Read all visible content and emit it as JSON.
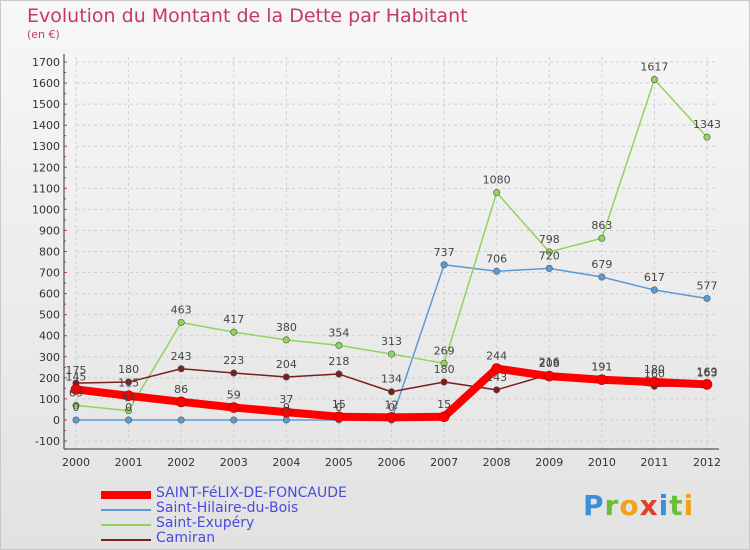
{
  "title": "Evolution du Montant de la Dette par Habitant",
  "subtitle": "(en €)",
  "logo": {
    "text": "Proxiti",
    "letters": [
      {
        "ch": "P",
        "color": "#3a8fd6"
      },
      {
        "ch": "r",
        "color": "#6cbd3a"
      },
      {
        "ch": "o",
        "color": "#f0a21a"
      },
      {
        "ch": "x",
        "color": "#e0402a"
      },
      {
        "ch": "i",
        "color": "#3a8fd6"
      },
      {
        "ch": "t",
        "color": "#6cbd3a"
      },
      {
        "ch": "i",
        "color": "#f0a21a"
      }
    ]
  },
  "chart_data": {
    "type": "line",
    "x": [
      2000,
      2001,
      2002,
      2003,
      2004,
      2005,
      2006,
      2007,
      2008,
      2009,
      2010,
      2011,
      2012
    ],
    "ylim": [
      -100,
      1700
    ],
    "yticks": [
      -100,
      0,
      100,
      200,
      300,
      400,
      500,
      600,
      700,
      800,
      900,
      1000,
      1100,
      1200,
      1300,
      1400,
      1500,
      1600,
      1700
    ],
    "grid": true,
    "legend_position": "bottom-left",
    "series": [
      {
        "name": "SAINT-FéLIX-DE-FONCAUDE",
        "color": "#ff0000",
        "width": 8,
        "values": [
          145,
          115,
          86,
          59,
          37,
          15,
          12,
          15,
          244,
          208,
          191,
          180,
          169
        ],
        "labels": [
          "145",
          "115",
          "86",
          "59",
          "37",
          "15",
          "12",
          "15",
          "244",
          "208",
          "191",
          "180",
          "169"
        ]
      },
      {
        "name": "Saint-Hilaire-du-Bois",
        "color": "#5b9bd5",
        "width": 1.5,
        "values": [
          0,
          0,
          0,
          0,
          0,
          0,
          0,
          737,
          706,
          720,
          679,
          617,
          577
        ],
        "labels": [
          "0",
          "0",
          "",
          "",
          "0",
          "0",
          "0",
          "737",
          "706",
          "720",
          "679",
          "617",
          "577"
        ]
      },
      {
        "name": "Saint-Exupéry",
        "color": "#8fd45c",
        "width": 1.5,
        "values": [
          69,
          44,
          463,
          417,
          380,
          354,
          313,
          269,
          1080,
          798,
          863,
          1617,
          1343
        ],
        "labels": [
          "69",
          "44",
          "463",
          "417",
          "380",
          "354",
          "313",
          "269",
          "1080",
          "798",
          "863",
          "1617",
          "1343"
        ]
      },
      {
        "name": "Camiran",
        "color": "#7a1e1e",
        "width": 1.5,
        "values": [
          175,
          180,
          243,
          223,
          204,
          218,
          134,
          180,
          143,
          216,
          191,
          160,
          163
        ],
        "labels": [
          "175",
          "180",
          "243",
          "223",
          "204",
          "218",
          "134",
          "180",
          "143",
          "216",
          "191",
          "160",
          "163"
        ]
      }
    ]
  }
}
